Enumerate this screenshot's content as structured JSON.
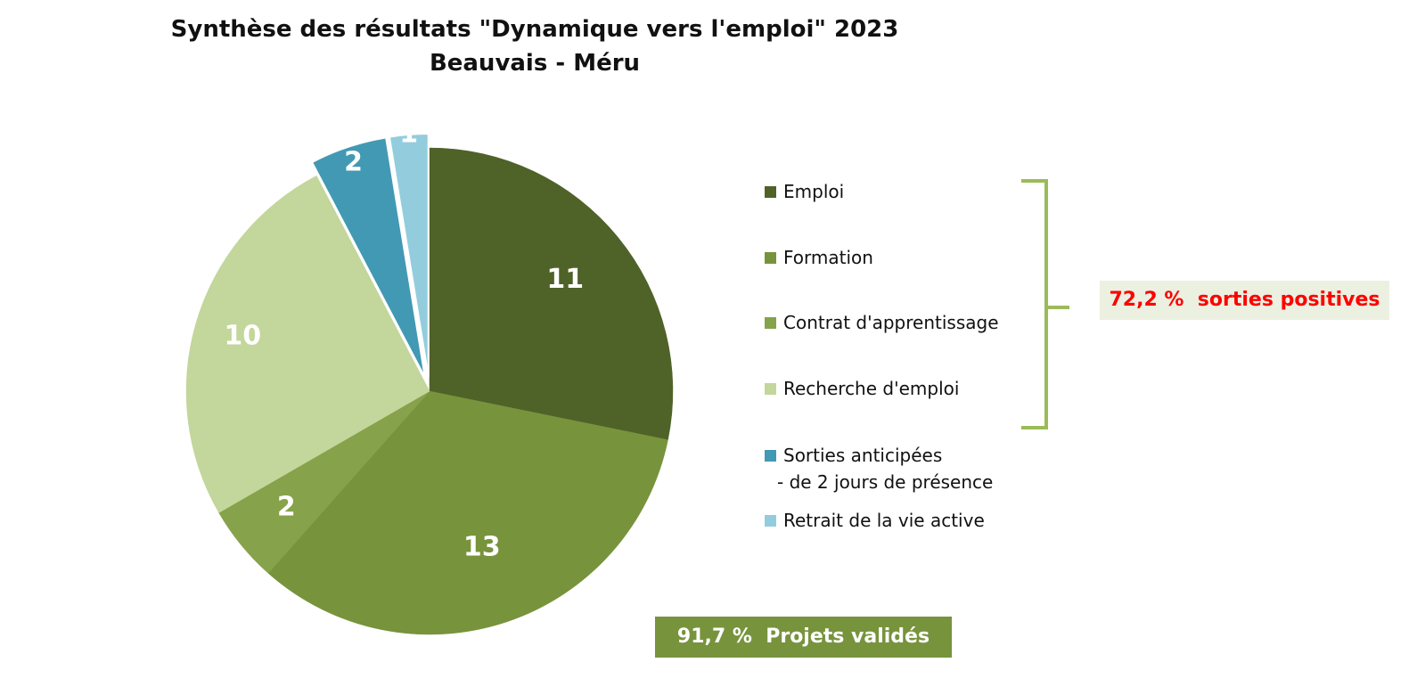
{
  "chart_data": {
    "type": "pie",
    "title": "Synthèse des résultats \"Dynamique vers l'emploi\" 2023",
    "subtitle": "Beauvais - Méru",
    "legend_position": "right",
    "slices": [
      {
        "label": "Emploi",
        "label_line2": "",
        "value": 11,
        "color": "#4f6228"
      },
      {
        "label": "Formation",
        "label_line2": "",
        "value": 13,
        "color": "#77933c"
      },
      {
        "label": "Contrat d'apprentissage",
        "label_line2": "",
        "value": 2,
        "color": "#86a24a"
      },
      {
        "label": "Recherche d'emploi",
        "label_line2": "",
        "value": 10,
        "color": "#c3d69b"
      },
      {
        "label": "Sorties anticipées",
        "label_line2": "- de 2 jours de présence",
        "value": 2,
        "color": "#4299b3",
        "exploded": true
      },
      {
        "label": "Retrait de la vie active",
        "label_line2": "",
        "value": 1,
        "color": "#93cddd",
        "exploded": true
      }
    ],
    "annotations": {
      "positive_exits": "72,2 %  sorties positives",
      "validated_projects": "91,7 %  Projets validés"
    }
  },
  "colors": {
    "bracket": "#9bbb59",
    "positive_text": "#ff0000",
    "positive_bg": "#ebf0e1",
    "validated_bg": "#77933c"
  }
}
